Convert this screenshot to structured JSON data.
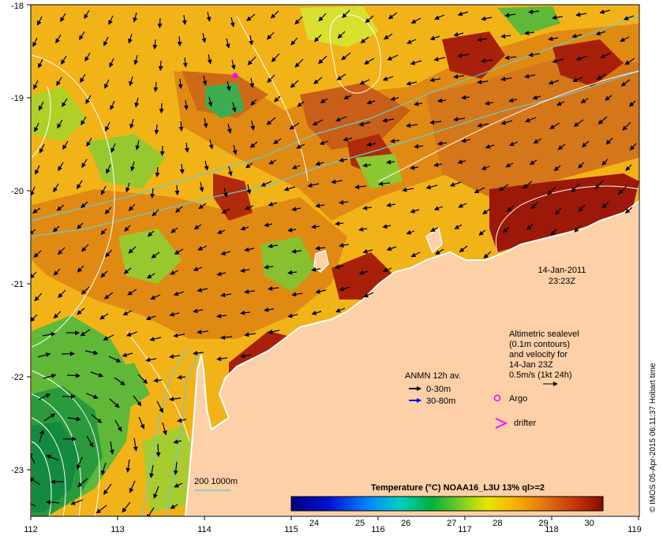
{
  "map": {
    "lon_ticks": [
      "112",
      "113",
      "114",
      "115",
      "116",
      "117",
      "118",
      "119"
    ],
    "lat_ticks": [
      "-18",
      "-19",
      "-20",
      "-21",
      "-22",
      "-23"
    ],
    "date_label": "14-Jan-2011",
    "time_label": "23:23Z",
    "altimetry_note": [
      "Altimetric sealevel",
      "(0.1m contours)",
      "and velocity for",
      "14-Jan 23Z",
      "0.5m/s (1kt 24h)"
    ],
    "anmn_title": "ANMN 12h av.",
    "anmn_items": [
      {
        "label": "0-30m",
        "color": "#000000"
      },
      {
        "label": "30-80m",
        "color": "#0000ff"
      }
    ],
    "argo_label": "Argo",
    "drifter_label": "drifter",
    "isobath_label": "200  1000m",
    "credit": "© IMOS 05-Apr-2015 06:11:37 Hobart time",
    "colorbar": {
      "title": "Temperature (°C) NOAA16_L3U 13% ql>=2",
      "ticks": [
        "24",
        "25",
        "26",
        "27",
        "28",
        "29",
        "30"
      ],
      "min": 23.5,
      "max": 30.3
    },
    "colors": {
      "land": "#fdd0a8",
      "coastline": "#ffffff",
      "isobath": "#66cccc",
      "contour": "#ffffff",
      "arrow": "#000000",
      "argo": "#ff00ff",
      "drifter": "#ff00ff"
    }
  }
}
